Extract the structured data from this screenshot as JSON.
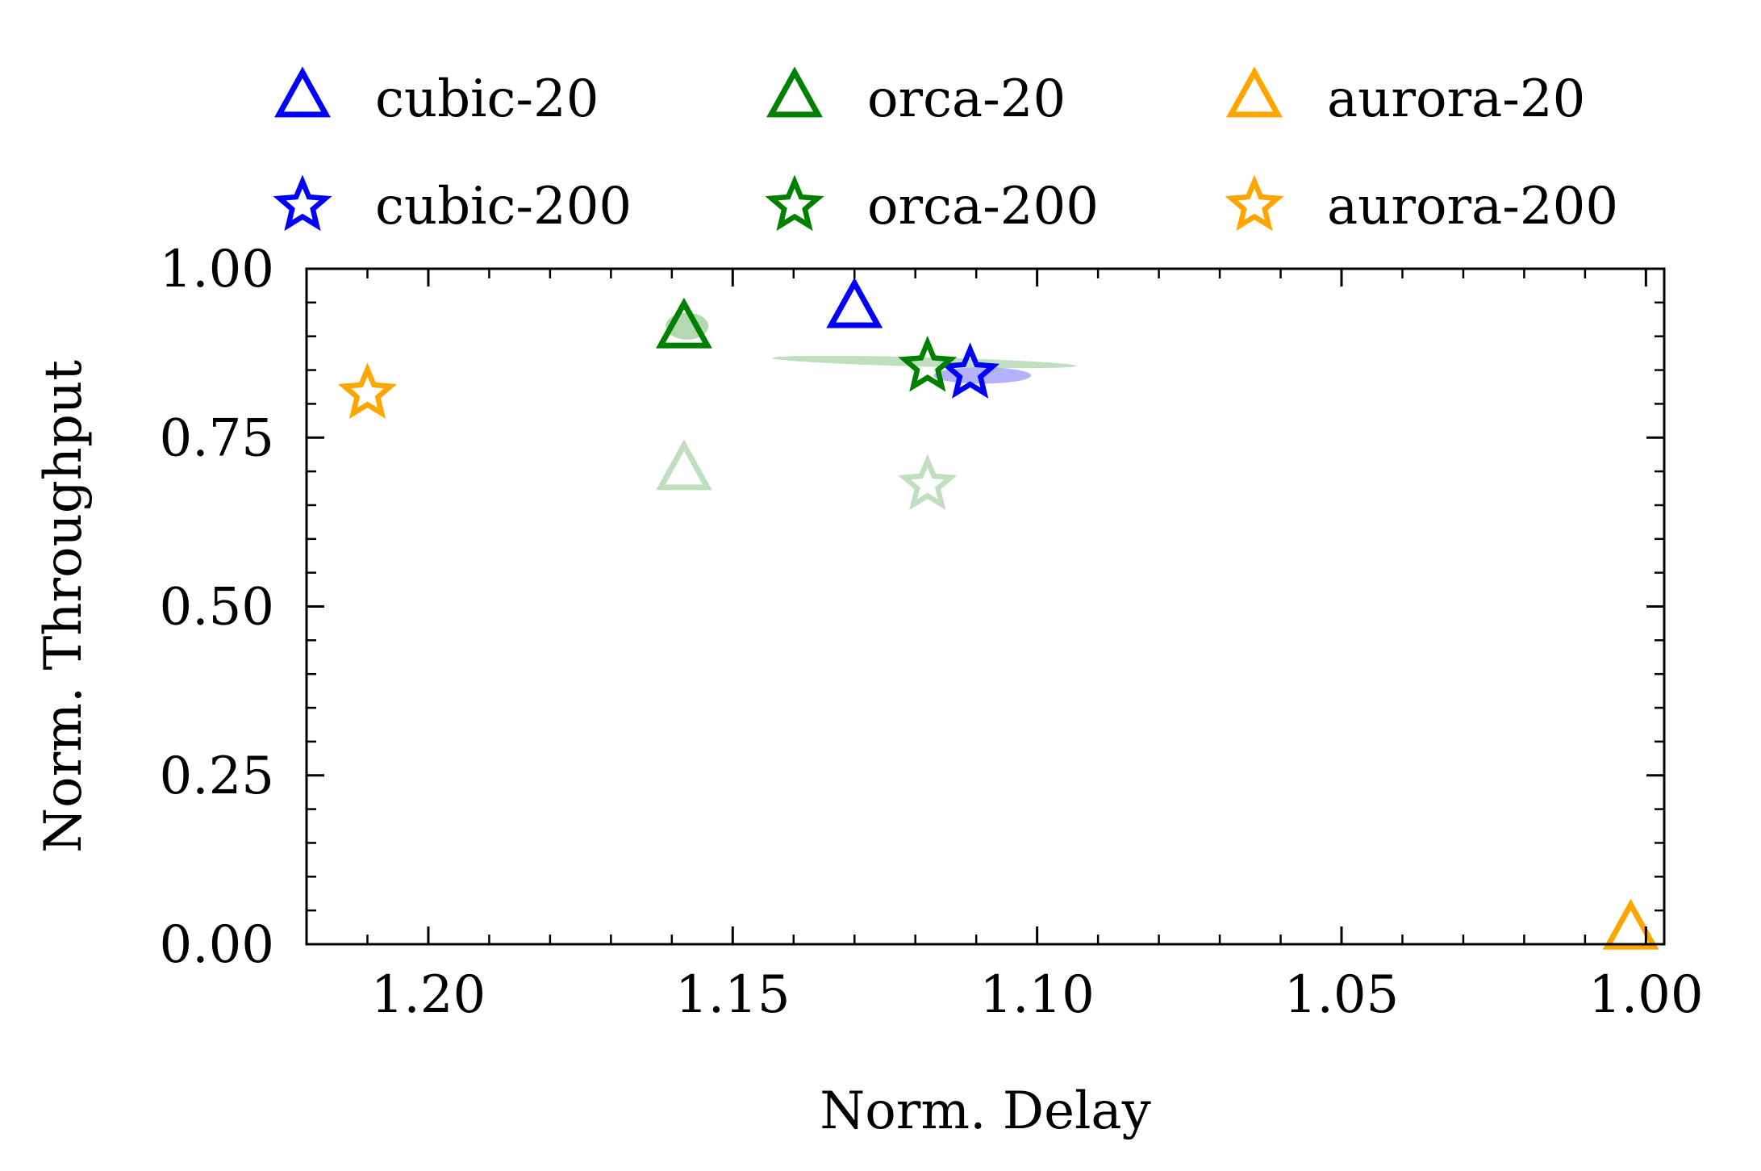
{
  "chart_data": {
    "type": "scatter",
    "title": "",
    "xlabel": "Norm. Delay",
    "ylabel": "Norm. Throughput",
    "xlim": [
      1.22,
      0.997
    ],
    "x_inverted": true,
    "ylim": [
      0.0,
      1.0
    ],
    "xticks": [
      1.2,
      1.15,
      1.1,
      1.05,
      1.0
    ],
    "xtick_labels": [
      "1.20",
      "1.15",
      "1.10",
      "1.05",
      "1.00"
    ],
    "yticks": [
      0.0,
      0.25,
      0.5,
      0.75,
      1.0
    ],
    "ytick_labels": [
      "0.00",
      "0.25",
      "0.50",
      "0.75",
      "1.00"
    ],
    "grid": false,
    "legend_position": "top",
    "series": [
      {
        "name": "cubic-20",
        "marker": "triangle",
        "color": "#0000ff",
        "points": [
          {
            "x": 1.13,
            "y": 0.94
          }
        ]
      },
      {
        "name": "orca-20",
        "marker": "triangle",
        "color": "#008000",
        "points": [
          {
            "x": 1.158,
            "y": 0.91
          }
        ]
      },
      {
        "name": "aurora-20",
        "marker": "triangle",
        "color": "#ffa500",
        "points": [
          {
            "x": 1.0025,
            "y": 0.02
          }
        ]
      },
      {
        "name": "cubic-200",
        "marker": "star",
        "color": "#0000ff",
        "points": [
          {
            "x": 1.111,
            "y": 0.845
          }
        ]
      },
      {
        "name": "orca-200",
        "marker": "star",
        "color": "#008000",
        "points": [
          {
            "x": 1.118,
            "y": 0.855
          }
        ]
      },
      {
        "name": "aurora-200",
        "marker": "star",
        "color": "#ffa500",
        "points": [
          {
            "x": 1.21,
            "y": 0.815
          }
        ]
      }
    ],
    "faded_points": [
      {
        "marker": "triangle",
        "color": "#008000",
        "opacity": 0.25,
        "x": 1.158,
        "y": 0.7
      },
      {
        "marker": "star",
        "color": "#008000",
        "opacity": 0.25,
        "x": 1.118,
        "y": 0.68
      }
    ],
    "ellipses": [
      {
        "color": "#008000",
        "opacity": 0.25,
        "cx": 1.1185,
        "cy": 0.862,
        "rx": 0.025,
        "ry": 0.007,
        "angle_deg": 1.5
      },
      {
        "color": "#0000ff",
        "opacity": 0.3,
        "cx": 1.109,
        "cy": 0.842,
        "rx": 0.008,
        "ry": 0.012,
        "angle_deg": 0
      },
      {
        "color": "#008000",
        "opacity": 0.3,
        "cx": 1.1575,
        "cy": 0.915,
        "rx": 0.0035,
        "ry": 0.02,
        "angle_deg": 0
      }
    ]
  }
}
